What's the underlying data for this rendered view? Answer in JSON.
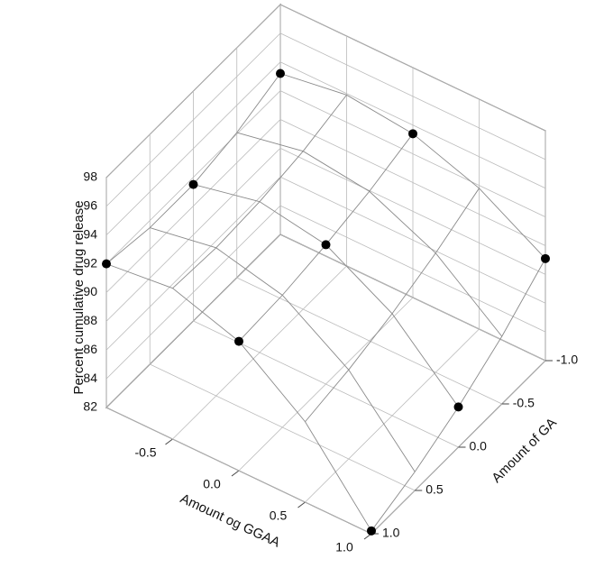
{
  "chart_data": {
    "type": "surface3d",
    "x_label": "Amount og GGAA",
    "y_label": "Amount of GA",
    "z_label": "Percent cumulative drug release",
    "xlim": [
      -1,
      1
    ],
    "ylim": [
      -1,
      1
    ],
    "zlim": [
      82,
      98
    ],
    "xticks": [
      -0.5,
      {
        "value": 0,
        "label": "0.0"
      },
      {
        "value": 0.5,
        "label": "0.5"
      },
      {
        "value": 1,
        "label": "1.0"
      }
    ],
    "yticks": [
      {
        "value": -1,
        "label": "-1.0"
      },
      -0.5,
      {
        "value": 0,
        "label": "0.0"
      },
      {
        "value": 0.5,
        "label": "0.5"
      },
      {
        "value": 1,
        "label": "1.0"
      }
    ],
    "zticks": [
      82,
      84,
      86,
      88,
      90,
      92,
      94,
      96,
      98
    ],
    "grid": true,
    "surface": {
      "color": "#8a8a8a",
      "x": [
        -1,
        -0.5,
        0,
        0.5,
        1
      ],
      "y": [
        -1,
        -0.5,
        0,
        0.5,
        1
      ],
      "z": [
        [
          93.2,
          92.1,
          91.5,
          91.5,
          92
        ],
        [
          93.9,
          93.0,
          92.5,
          92.3,
          92.5
        ],
        [
          93.4,
          92.4,
          91.7,
          91.2,
          91
        ],
        [
          91.8,
          90.3,
          89.1,
          88.2,
          87.6
        ],
        [
          89.1,
          86.7,
          84.8,
          83.3,
          82.2
        ]
      ]
    },
    "points": {
      "color": "#000000",
      "x": [
        -1,
        -1,
        -1,
        0,
        0,
        0,
        1,
        1,
        1
      ],
      "y": [
        -1,
        0,
        1,
        -1,
        0,
        1,
        -1,
        0,
        1
      ],
      "z": [
        93.2,
        91.5,
        92,
        93.4,
        91.7,
        91,
        89.1,
        84.8,
        82.2
      ]
    }
  }
}
